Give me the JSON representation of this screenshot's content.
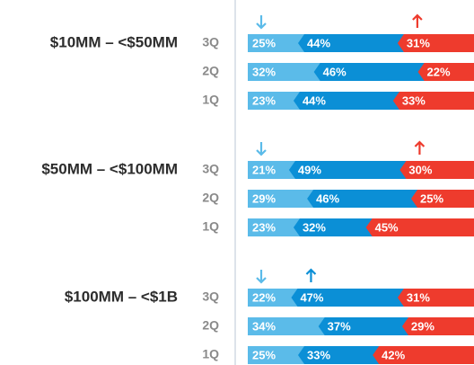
{
  "chart_data": {
    "type": "bar",
    "orientation": "horizontal",
    "stacked": true,
    "groups": [
      "$10MM – <$50MM",
      "$50MM – <$100MM",
      "$100MM – <$1B"
    ],
    "categories": [
      "3Q",
      "2Q",
      "1Q",
      "3Q",
      "2Q",
      "1Q",
      "3Q",
      "2Q",
      "1Q"
    ],
    "xlim": [
      0,
      100
    ],
    "series": [
      {
        "color": "#5bbbe9",
        "values": [
          25,
          32,
          23,
          21,
          29,
          23,
          22,
          34,
          25
        ],
        "value_labels": [
          "25%",
          "32%",
          "23%",
          "21%",
          "29%",
          "23%",
          "22%",
          "34%",
          "25%"
        ]
      },
      {
        "color": "#0b8fd6",
        "values": [
          44,
          46,
          44,
          49,
          46,
          32,
          47,
          37,
          33
        ],
        "value_labels": [
          "44%",
          "46%",
          "44%",
          "49%",
          "46%",
          "32%",
          "47%",
          "37%",
          "33%"
        ]
      },
      {
        "color": "#ee3b2d",
        "values": [
          31,
          22,
          33,
          30,
          25,
          45,
          31,
          29,
          42
        ],
        "value_labels": [
          "31%",
          "22%",
          "33%",
          "30%",
          "25%",
          "45%",
          "31%",
          "29%",
          "42%"
        ]
      }
    ],
    "arrows": [
      [
        {
          "series": 0,
          "direction": "down"
        },
        {
          "series": 2,
          "direction": "up"
        }
      ],
      [
        {
          "series": 0,
          "direction": "down"
        },
        {
          "series": 2,
          "direction": "up"
        }
      ],
      [
        {
          "series": 0,
          "direction": "down"
        },
        {
          "series": 1,
          "direction": "up"
        }
      ]
    ]
  }
}
